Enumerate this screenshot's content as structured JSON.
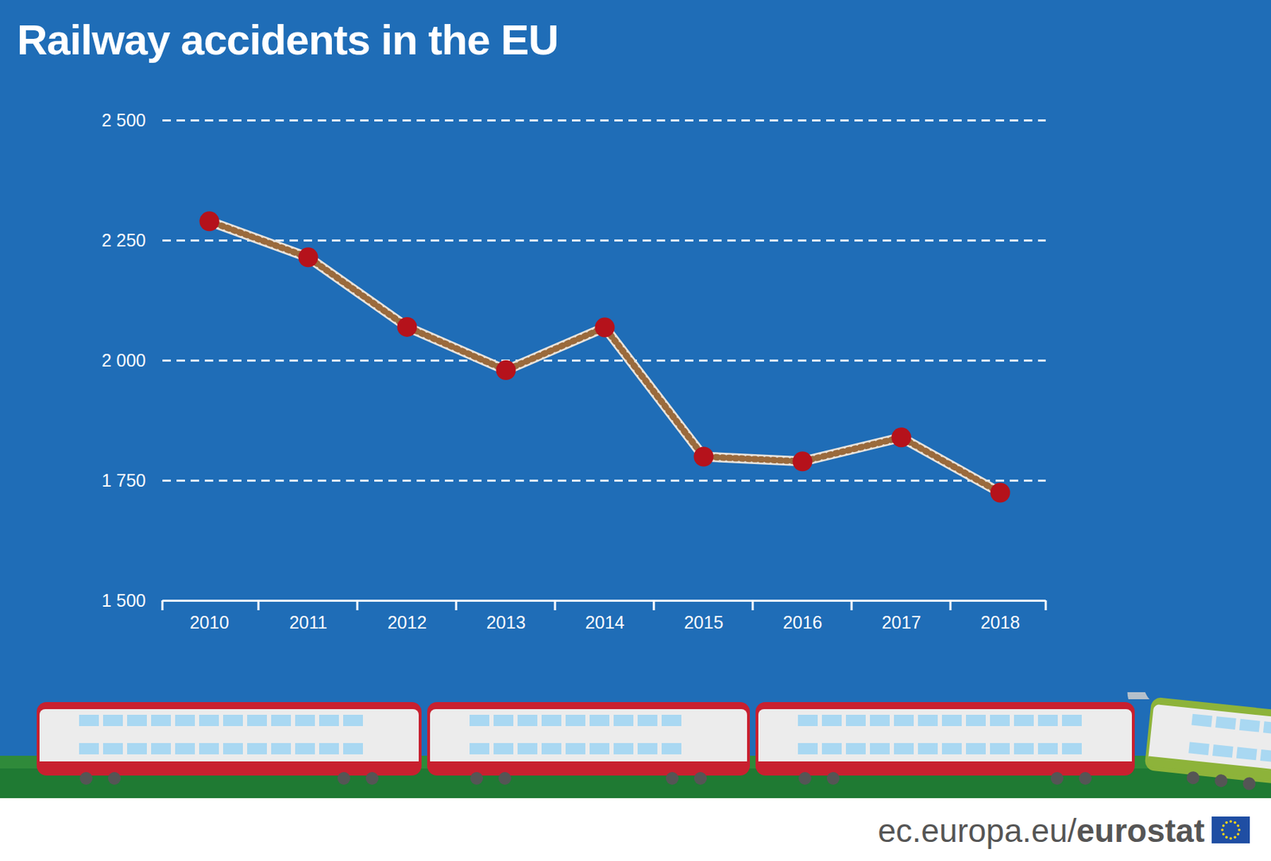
{
  "chart_data": {
    "type": "line",
    "title": "Railway accidents in the EU",
    "categories": [
      "2010",
      "2011",
      "2012",
      "2013",
      "2014",
      "2015",
      "2016",
      "2017",
      "2018"
    ],
    "values": [
      2290,
      2215,
      2070,
      1980,
      2069,
      1800,
      1790,
      1840,
      1725
    ],
    "color": "#b5121b",
    "marker": "circle",
    "ylim": [
      1500,
      2500
    ],
    "yticks": [
      {
        "value": 1500,
        "label": "1 500"
      },
      {
        "value": 1750,
        "label": "1 750"
      },
      {
        "value": 2000,
        "label": "2 000"
      },
      {
        "value": 2250,
        "label": "2 250"
      },
      {
        "value": 2500,
        "label": "2 500"
      }
    ],
    "grid": true,
    "source": "ec.europa.eu/eurostat"
  }
}
